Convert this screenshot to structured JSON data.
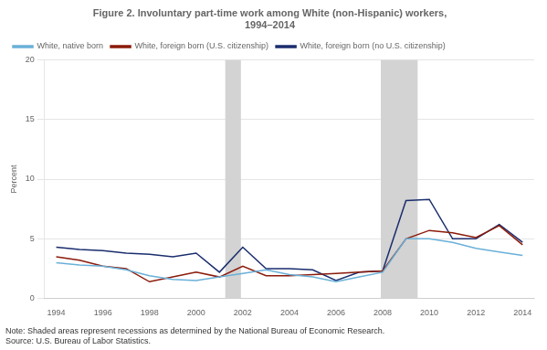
{
  "chart_data": {
    "type": "line",
    "title": [
      "Figure 2. Involuntary part-time work among White (non-Hispanic) workers,",
      "1994–2014"
    ],
    "y_label": "Percent",
    "note": "Note: Shaded areas represent recessions as determined by the National Bureau of Economic Research.\nSource: U.S. Bureau of Labor Statistics.",
    "x": [
      1994,
      1995,
      1996,
      1997,
      1998,
      1999,
      2000,
      2001,
      2002,
      2003,
      2004,
      2005,
      2006,
      2007,
      2008,
      2009,
      2010,
      2011,
      2012,
      2013,
      2014
    ],
    "series": [
      {
        "name": "White, native born",
        "color": "#6ab0d8",
        "values": [
          3.0,
          2.8,
          2.7,
          2.4,
          1.9,
          1.6,
          1.5,
          1.8,
          2.1,
          2.4,
          2.0,
          1.8,
          1.4,
          1.8,
          2.2,
          5.0,
          5.0,
          4.7,
          4.2,
          3.9,
          3.6
        ]
      },
      {
        "name": "White, foreign born (U.S. citizenship)",
        "color": "#8b1a0a",
        "values": [
          3.5,
          3.2,
          2.7,
          2.5,
          1.4,
          1.8,
          2.2,
          1.8,
          2.7,
          1.9,
          1.9,
          2.0,
          2.1,
          2.2,
          2.3,
          5.0,
          5.7,
          5.5,
          5.1,
          6.1,
          4.5
        ]
      },
      {
        "name": "White, foreign born (no U.S. citizenship)",
        "color": "#1a2d6e",
        "values": [
          4.3,
          4.1,
          4.0,
          3.8,
          3.7,
          3.5,
          3.8,
          2.2,
          4.3,
          2.5,
          2.5,
          2.4,
          1.5,
          2.2,
          2.3,
          8.2,
          8.3,
          5.0,
          5.0,
          6.2,
          4.7
        ]
      }
    ],
    "shaded_ranges": [
      {
        "from": 2001.25,
        "to": 2001.92,
        "color": "#d3d3d3"
      },
      {
        "from": 2007.92,
        "to": 2009.5,
        "color": "#d3d3d3"
      }
    ],
    "xlim": [
      1993.5,
      2014.5
    ],
    "xticks": [
      1994,
      1996,
      1998,
      2000,
      2002,
      2004,
      2006,
      2008,
      2010,
      2012,
      2014
    ],
    "ylim": [
      0,
      20
    ],
    "yticks": [
      0,
      5,
      10,
      15,
      20
    ],
    "grid": "y",
    "legend": "upper left"
  }
}
